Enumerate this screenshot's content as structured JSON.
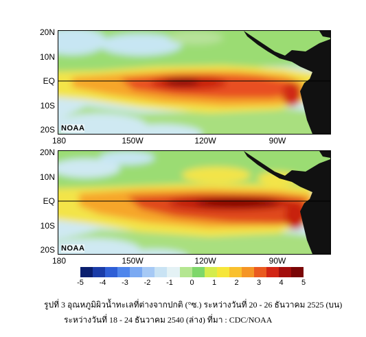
{
  "top_panel": {
    "lat_labels": [
      "20N",
      "10N",
      "EQ",
      "10S",
      "20S"
    ],
    "lon_labels": [
      "180",
      "150W",
      "120W",
      "90W"
    ],
    "watermark": "NOAA"
  },
  "bottom_panel": {
    "lat_labels": [
      "20N",
      "10N",
      "EQ",
      "10S",
      "20S"
    ],
    "lon_labels": [
      "180",
      "150W",
      "120W",
      "90W"
    ],
    "watermark": "NOAA"
  },
  "colorbar": {
    "ticks": [
      "-5",
      "-4",
      "-3",
      "-2",
      "-1",
      "0",
      "1",
      "2",
      "3",
      "4",
      "5"
    ],
    "colors": [
      "#0a1e6e",
      "#1a3ca8",
      "#2f5fd6",
      "#4f86ec",
      "#7aa9f2",
      "#a6c9f5",
      "#c9e3f4",
      "#e4f2f5",
      "#b4e691",
      "#7ed76a",
      "#d4ec4d",
      "#f6e63a",
      "#f9c02e",
      "#f59525",
      "#ea5a1f",
      "#d22514",
      "#a30e0c",
      "#7a0606"
    ]
  },
  "caption": {
    "line1": "รูปที่ 3  อุณหภูมิผิวน้ำทะเลที่ต่างจากปกติ (°ซ.) ระหว่างวันที่ 20 - 26 ธันวาคม 2525 (บน)",
    "line2": "ระหว่างวันที่ 18 - 24 ธันวาคม 2540 (ล่าง)   ที่มา  : CDC/NOAA"
  }
}
